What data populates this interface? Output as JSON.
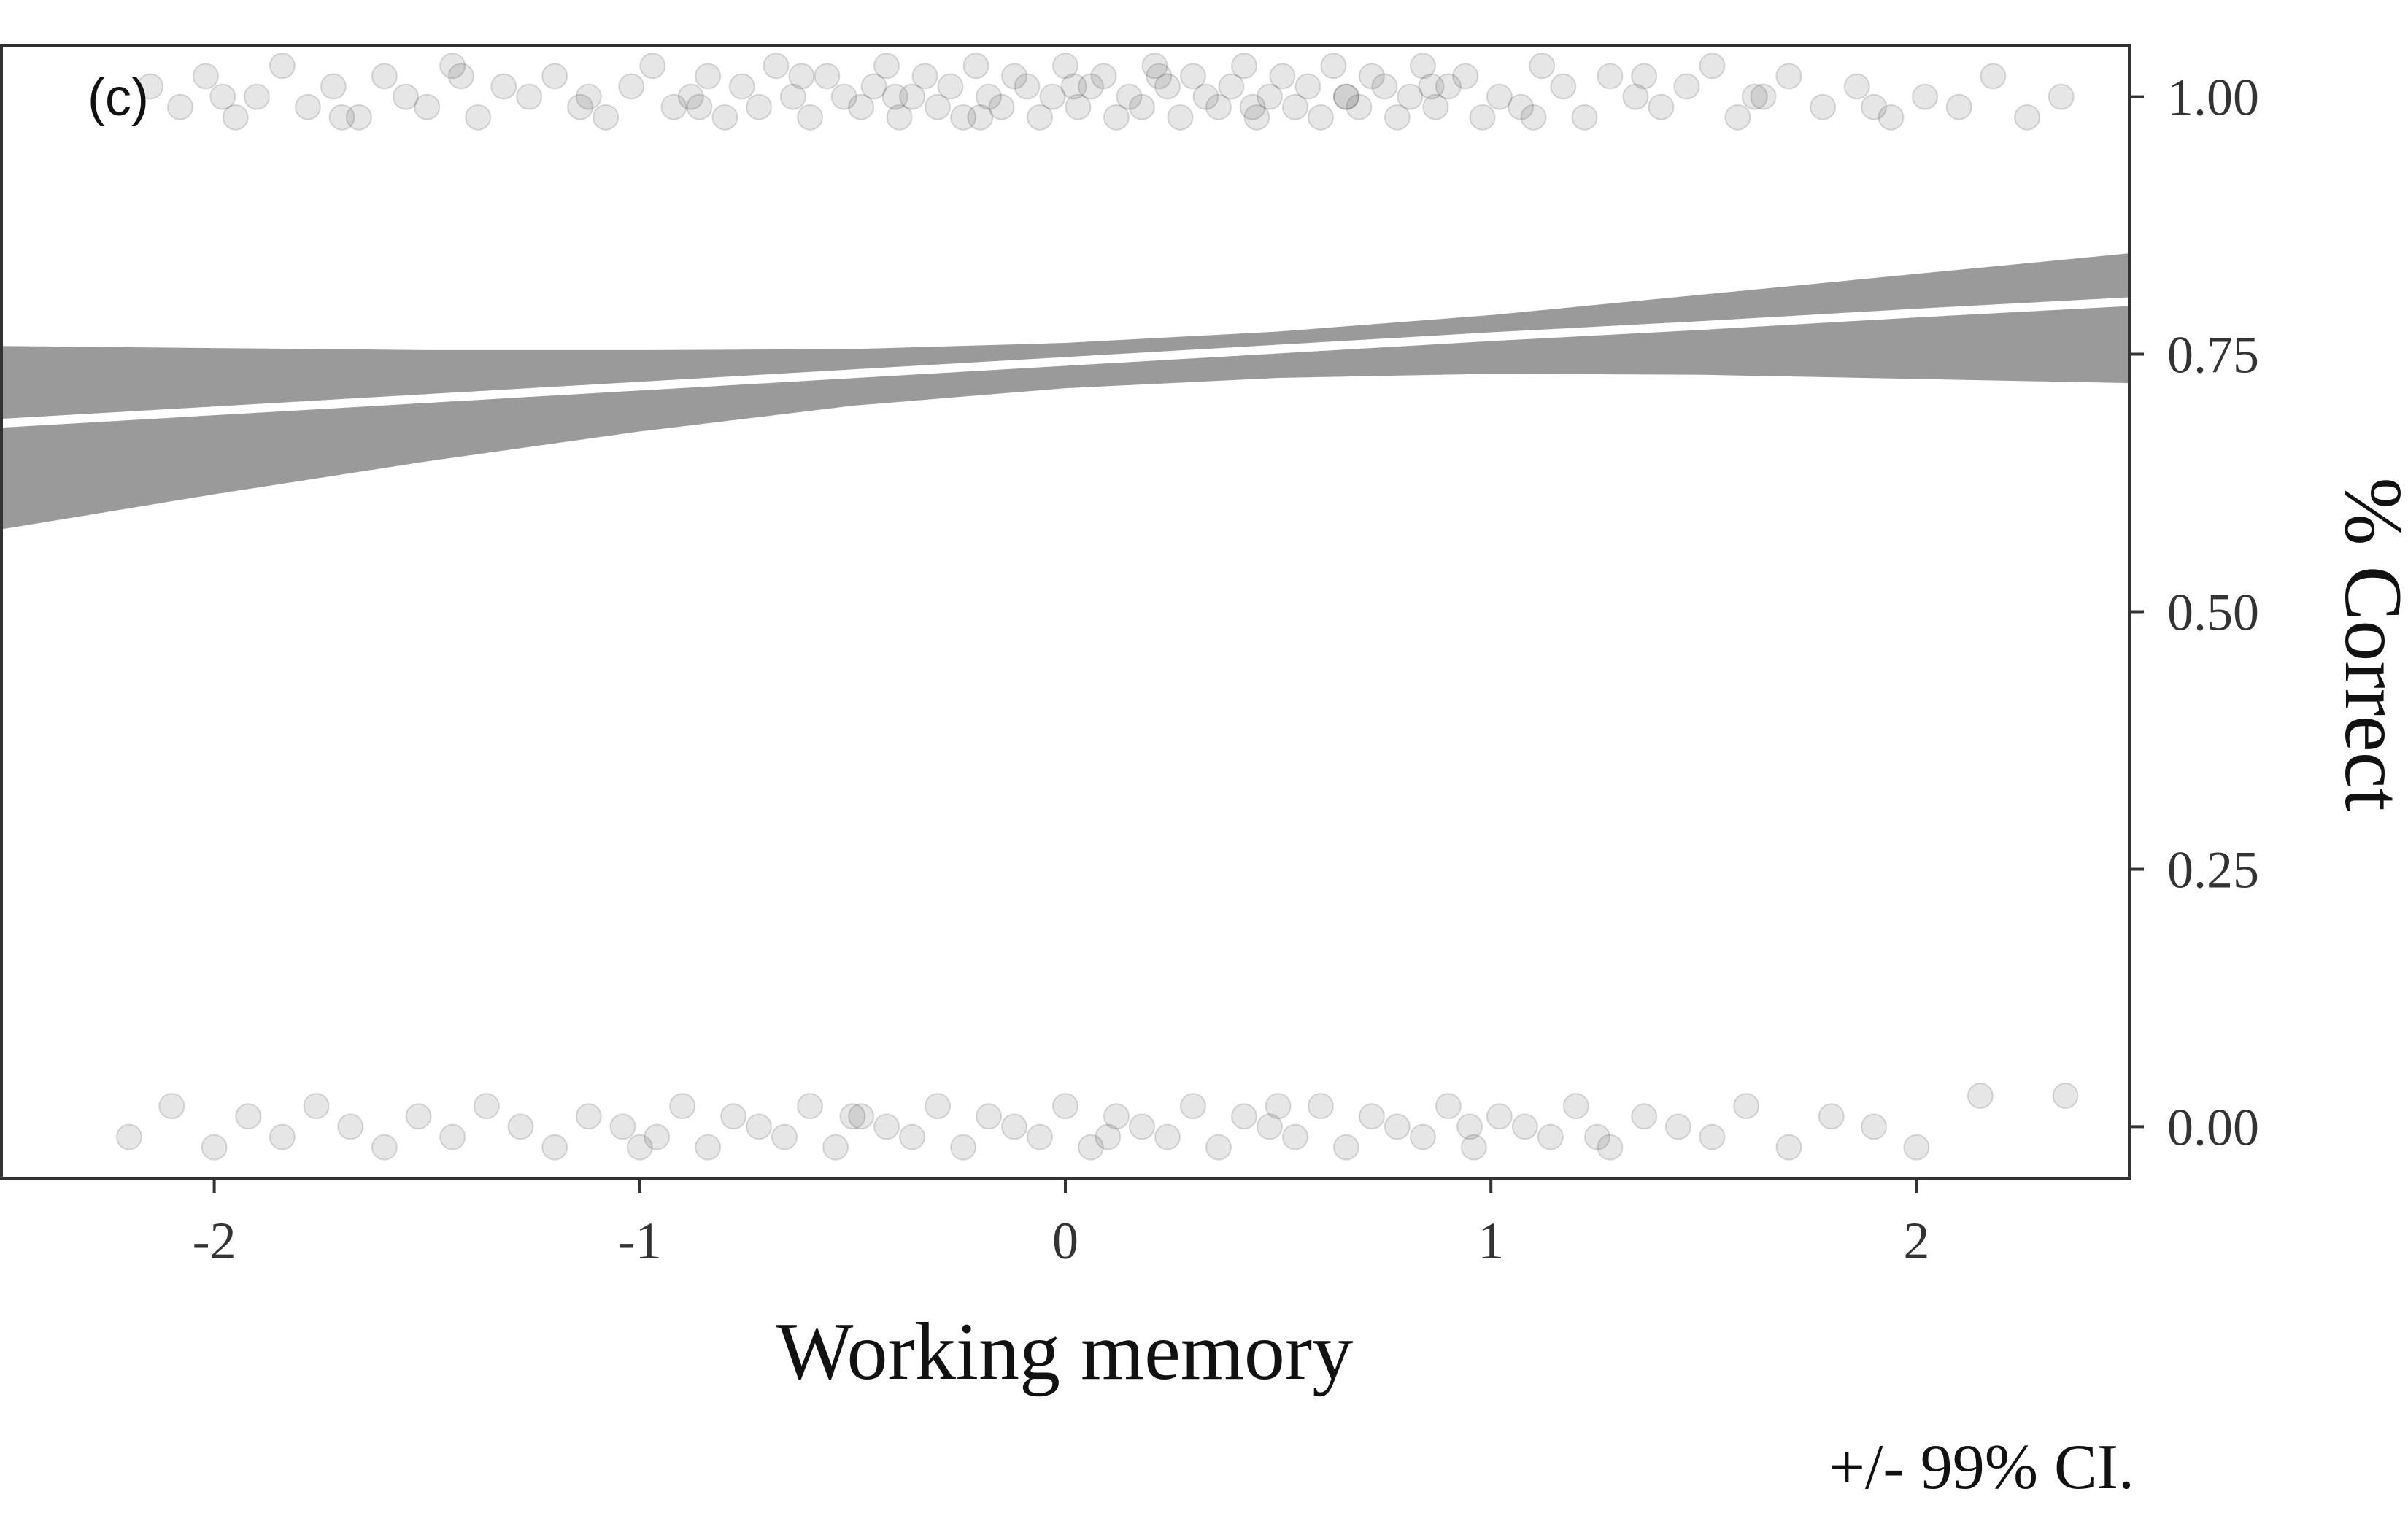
{
  "chart_data": {
    "type": "scatter",
    "panel_tag": "(c)",
    "title": "",
    "xlabel": "Working memory",
    "ylabel": "% Correct",
    "caption": "+/- 99% CI.",
    "xlim": [
      -2.5,
      2.5
    ],
    "ylim": [
      -0.05,
      1.05
    ],
    "x_ticks": [
      -2,
      -1,
      0,
      1,
      2
    ],
    "x_tick_labels": [
      "-2",
      "-1",
      "0",
      "1",
      "2"
    ],
    "y_ticks": [
      0,
      0.25,
      0.5,
      0.75,
      1.0
    ],
    "y_tick_labels": [
      "0.00",
      "0.25",
      "0.50",
      "0.75",
      "1.00"
    ],
    "y_axis_side": "right",
    "grid": false,
    "legend": "none",
    "colors": {
      "points": "#3a3a3a",
      "ribbon": "#9a9a9a",
      "fit_line": "#ffffff",
      "frame": "#333333"
    },
    "fit": {
      "x": [
        -2.5,
        -2.0,
        -1.5,
        -1.0,
        -0.5,
        0.0,
        0.5,
        1.0,
        1.5,
        2.0,
        2.5
      ],
      "y": [
        0.683,
        0.695,
        0.707,
        0.719,
        0.731,
        0.743,
        0.755,
        0.767,
        0.778,
        0.79,
        0.801
      ],
      "lower": [
        0.58,
        0.614,
        0.646,
        0.675,
        0.7,
        0.717,
        0.727,
        0.731,
        0.73,
        0.726,
        0.722
      ],
      "upper": [
        0.758,
        0.756,
        0.754,
        0.754,
        0.755,
        0.761,
        0.772,
        0.788,
        0.808,
        0.828,
        0.848
      ]
    },
    "points": {
      "description_of_distribution": "jittered binary outcomes",
      "series": [
        {
          "outcome": 1,
          "x": [
            -2.15,
            -2.08,
            -2.02,
            -1.95,
            -1.9,
            -1.84,
            -1.78,
            -1.72,
            -1.66,
            -1.6,
            -1.55,
            -1.5,
            -1.44,
            -1.38,
            -1.32,
            -1.26,
            -1.2,
            -1.14,
            -1.08,
            -1.02,
            -0.97,
            -0.92,
            -0.88,
            -0.84,
            -0.8,
            -0.76,
            -0.72,
            -0.68,
            -0.64,
            -0.6,
            -0.56,
            -0.52,
            -0.48,
            -0.45,
            -0.42,
            -0.39,
            -0.36,
            -0.33,
            -0.3,
            -0.27,
            -0.24,
            -0.21,
            -0.18,
            -0.15,
            -0.12,
            -0.09,
            -0.06,
            -0.03,
            0.0,
            0.03,
            0.06,
            0.09,
            0.12,
            0.15,
            0.18,
            0.21,
            0.24,
            0.27,
            0.3,
            0.33,
            0.36,
            0.39,
            0.42,
            0.45,
            0.48,
            0.51,
            0.54,
            0.57,
            0.6,
            0.63,
            0.66,
            0.69,
            0.72,
            0.75,
            0.78,
            0.81,
            0.84,
            0.87,
            0.9,
            0.94,
            0.98,
            1.02,
            1.07,
            1.12,
            1.17,
            1.22,
            1.28,
            1.34,
            1.4,
            1.46,
            1.52,
            1.58,
            1.64,
            1.7,
            1.78,
            1.86,
            1.94,
            2.02,
            2.1,
            2.18,
            2.26,
            2.34,
            -1.98,
            -1.7,
            -1.42,
            -1.12,
            -0.86,
            -0.62,
            -0.4,
            -0.2,
            0.02,
            0.22,
            0.44,
            0.66,
            0.86,
            1.1,
            1.36,
            1.62,
            1.9
          ],
          "y": [
            1.01,
            0.99,
            1.02,
            0.98,
            1.0,
            1.03,
            0.99,
            1.01,
            0.98,
            1.02,
            1.0,
            0.99,
            1.03,
            0.98,
            1.01,
            1.0,
            1.02,
            0.99,
            0.98,
            1.01,
            1.03,
            0.99,
            1.0,
            1.02,
            0.98,
            1.01,
            0.99,
            1.03,
            1.0,
            0.98,
            1.02,
            1.0,
            0.99,
            1.01,
            1.03,
            0.98,
            1.0,
            1.02,
            0.99,
            1.01,
            0.98,
            1.03,
            1.0,
            0.99,
            1.02,
            1.01,
            0.98,
            1.0,
            1.03,
            0.99,
            1.01,
            1.02,
            0.98,
            1.0,
            0.99,
            1.03,
            1.01,
            0.98,
            1.02,
            1.0,
            0.99,
            1.01,
            1.03,
            0.98,
            1.0,
            1.02,
            0.99,
            1.01,
            0.98,
            1.03,
            1.0,
            0.99,
            1.02,
            1.01,
            0.98,
            1.0,
            1.03,
            0.99,
            1.01,
            1.02,
            0.98,
            1.0,
            0.99,
            1.03,
            1.01,
            0.98,
            1.02,
            1.0,
            0.99,
            1.01,
            1.03,
            0.98,
            1.0,
            1.02,
            0.99,
            1.01,
            0.98,
            1.0,
            0.99,
            1.02,
            0.98,
            1.0,
            1.0,
            0.98,
            1.02,
            1.0,
            0.99,
            1.02,
            1.0,
            0.98,
            1.01,
            1.02,
            0.99,
            1.0,
            1.01,
            0.98,
            1.02,
            1.0,
            0.99
          ]
        },
        {
          "outcome": 0,
          "x": [
            -2.2,
            -2.1,
            -2.0,
            -1.92,
            -1.84,
            -1.76,
            -1.68,
            -1.6,
            -1.52,
            -1.44,
            -1.36,
            -1.28,
            -1.2,
            -1.12,
            -1.04,
            -0.96,
            -0.9,
            -0.84,
            -0.78,
            -0.72,
            -0.66,
            -0.6,
            -0.54,
            -0.48,
            -0.42,
            -0.36,
            -0.3,
            -0.24,
            -0.18,
            -0.12,
            -0.06,
            0.0,
            0.06,
            0.12,
            0.18,
            0.24,
            0.3,
            0.36,
            0.42,
            0.48,
            0.54,
            0.6,
            0.66,
            0.72,
            0.78,
            0.84,
            0.9,
            0.96,
            1.02,
            1.08,
            1.14,
            1.2,
            1.28,
            1.36,
            1.44,
            1.52,
            1.6,
            1.7,
            1.8,
            1.9,
            2.0,
            2.15,
            2.35,
            -1.0,
            -0.5,
            0.1,
            0.5,
            0.95,
            1.25
          ],
          "y": [
            -0.01,
            0.02,
            -0.02,
            0.01,
            -0.01,
            0.02,
            0.0,
            -0.02,
            0.01,
            -0.01,
            0.02,
            0.0,
            -0.02,
            0.01,
            0.0,
            -0.01,
            0.02,
            -0.02,
            0.01,
            0.0,
            -0.01,
            0.02,
            -0.02,
            0.01,
            0.0,
            -0.01,
            0.02,
            -0.02,
            0.01,
            0.0,
            -0.01,
            0.02,
            -0.02,
            0.01,
            0.0,
            -0.01,
            0.02,
            -0.02,
            0.01,
            0.0,
            -0.01,
            0.02,
            -0.02,
            0.01,
            0.0,
            -0.01,
            0.02,
            -0.02,
            0.01,
            0.0,
            -0.01,
            0.02,
            -0.02,
            0.01,
            0.0,
            -0.01,
            0.02,
            -0.02,
            0.01,
            0.0,
            -0.02,
            0.03,
            0.03,
            -0.02,
            0.01,
            -0.01,
            0.02,
            0.0,
            -0.01
          ]
        }
      ]
    }
  }
}
